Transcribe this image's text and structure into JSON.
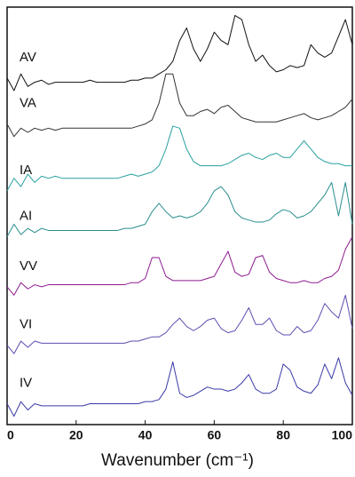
{
  "chart_data": {
    "type": "line",
    "xlabel": "Wavenumber (cm⁻¹)",
    "xlim": [
      0,
      100
    ],
    "xticks": [
      0,
      20,
      40,
      60,
      80,
      100
    ],
    "ylim": [
      0,
      100
    ],
    "x": [
      0,
      2,
      4,
      6,
      8,
      10,
      12,
      14,
      16,
      18,
      20,
      22,
      24,
      26,
      28,
      30,
      32,
      34,
      36,
      38,
      40,
      42,
      44,
      46,
      48,
      50,
      52,
      54,
      56,
      58,
      60,
      62,
      64,
      66,
      68,
      70,
      72,
      74,
      76,
      78,
      80,
      82,
      84,
      86,
      88,
      90,
      92,
      94,
      96,
      98,
      100
    ],
    "series": [
      {
        "name": "AV",
        "color": "#111111",
        "values": [
          83,
          80,
          84,
          81,
          82,
          82.5,
          81.5,
          82,
          82,
          82,
          82,
          82,
          82.5,
          82,
          82,
          82,
          82,
          82,
          82.5,
          82.5,
          83,
          83,
          84,
          85,
          87,
          92,
          95,
          90,
          87,
          90,
          94,
          92,
          91,
          98,
          97,
          91,
          87,
          88.5,
          86,
          84.5,
          85,
          86,
          85.5,
          86,
          91,
          89,
          88,
          89,
          93,
          97,
          91
        ]
      },
      {
        "name": "VA",
        "color": "#333333",
        "values": [
          72,
          69,
          71,
          70,
          71,
          70.5,
          71,
          70.5,
          71,
          71,
          71,
          71,
          71,
          71,
          71,
          71,
          71,
          71,
          71,
          71.5,
          72,
          73,
          77,
          84,
          84,
          77,
          74,
          74,
          75,
          75.5,
          74.5,
          76,
          76.5,
          75,
          73.5,
          73,
          72.5,
          72.5,
          72.5,
          72.5,
          73,
          73.5,
          74,
          74.5,
          73.5,
          73,
          73.5,
          74,
          75,
          76,
          78
        ]
      },
      {
        "name": "IA",
        "color": "#2aa0a0",
        "values": [
          56,
          59,
          57,
          60,
          58,
          59.5,
          59,
          59.5,
          59,
          59,
          59,
          59,
          59,
          59,
          59,
          59,
          59,
          59.5,
          60,
          59.5,
          60,
          60.5,
          62,
          66,
          71.5,
          71,
          66,
          63,
          62,
          62,
          62,
          62,
          62.5,
          63.5,
          64.5,
          65,
          64,
          63.5,
          64.5,
          65,
          64,
          64,
          66,
          68,
          66,
          64,
          63,
          62.5,
          62.5,
          62,
          62
        ]
      },
      {
        "name": "AI",
        "color": "#2a8e8e",
        "values": [
          45,
          48,
          45.5,
          47,
          46,
          47,
          46.5,
          46.5,
          46.5,
          46.5,
          46.5,
          46.5,
          46.5,
          46.5,
          46.5,
          46.5,
          46.5,
          47,
          47,
          47.5,
          48,
          51,
          53,
          51,
          49.5,
          50,
          49.5,
          50,
          51,
          53,
          56,
          57,
          55,
          51,
          49.5,
          49,
          48.5,
          48.5,
          49,
          50.5,
          51.5,
          51,
          49.5,
          50,
          51,
          53,
          55,
          58,
          50,
          58,
          48
        ]
      },
      {
        "name": "VV",
        "color": "#8e1a8e",
        "values": [
          33,
          31,
          34,
          32.5,
          33.5,
          33,
          33.5,
          33.5,
          33.5,
          33.5,
          33.5,
          33.5,
          33.5,
          33.5,
          33.5,
          33.5,
          33.5,
          33.5,
          34,
          34,
          35,
          40,
          40,
          35.5,
          34.5,
          34.5,
          34.5,
          34.5,
          34.5,
          35,
          35.5,
          38.5,
          41.5,
          36.5,
          35.5,
          36,
          40,
          40.5,
          36.5,
          35,
          34.5,
          34,
          34,
          34.5,
          34,
          34,
          35,
          35.5,
          37,
          42,
          45
        ]
      },
      {
        "name": "VI",
        "color": "#5a4fb0",
        "values": [
          19,
          17,
          20,
          18.5,
          20,
          19.5,
          19.5,
          19.5,
          19.5,
          19.5,
          19.5,
          19.5,
          19.5,
          19.5,
          19.5,
          19.5,
          19.5,
          19.5,
          20,
          20,
          20.5,
          21,
          21,
          22,
          24,
          25.5,
          23.5,
          22.5,
          23.5,
          25,
          25.5,
          23,
          22,
          22.5,
          25,
          28,
          24,
          24,
          25.5,
          22.5,
          21.5,
          21.5,
          23.5,
          22,
          22.5,
          25,
          29,
          27,
          25.5,
          31,
          23
        ]
      },
      {
        "name": "IV",
        "color": "#3a3aa8",
        "values": [
          5,
          2,
          5.5,
          3.5,
          5,
          4.5,
          4.5,
          4.5,
          4.5,
          4.5,
          4.5,
          4.5,
          5,
          5,
          5,
          5,
          5,
          5,
          5,
          5,
          5.5,
          5.5,
          6,
          8.5,
          15,
          7.5,
          6.5,
          7,
          8,
          9,
          8.5,
          8.5,
          8,
          8.5,
          10,
          12,
          8.5,
          7.5,
          7.5,
          8.5,
          14.5,
          13,
          9,
          8,
          7.5,
          9.5,
          14.5,
          11,
          16,
          10,
          7
        ]
      }
    ]
  }
}
